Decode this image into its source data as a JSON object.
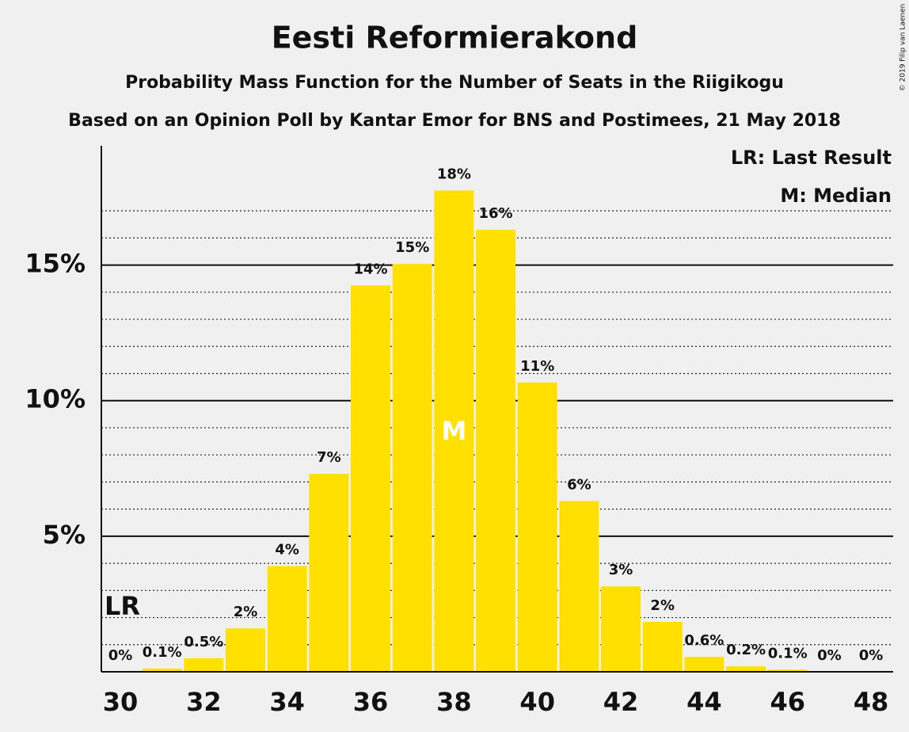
{
  "chart_data": {
    "type": "bar",
    "title": "Eesti Reformierakond",
    "subtitle": "Probability Mass Function for the Number of Seats in the Riigikogu",
    "subtitle2": "Based on an Opinion Poll by Kantar Emor for BNS and Postimees, 21 May 2018",
    "copyright": "© 2019 Filip van Laenen",
    "legend": [
      "LR: Last Result",
      "M: Median"
    ],
    "legend_position": "upper right",
    "last_result": 30,
    "last_result_label": "LR",
    "median": 38,
    "median_label": "M",
    "categories": [
      30,
      null,
      32,
      null,
      34,
      null,
      36,
      null,
      38,
      null,
      40,
      null,
      42,
      null,
      44,
      null,
      46,
      null,
      48
    ],
    "values": [
      0,
      0.12,
      0.5,
      1.6,
      3.9,
      7.3,
      14.25,
      15.04,
      17.75,
      16.3,
      10.67,
      6.3,
      3.15,
      1.84,
      0.55,
      0.2,
      0.08,
      0,
      0
    ],
    "value_labels": [
      "0%",
      "0.1%",
      "0.5%",
      "2%",
      "4%",
      "7%",
      "14%",
      "15%",
      "18%",
      "16%",
      "11%",
      "6%",
      "3%",
      "2%",
      "0.6%",
      "0.2%",
      "0.1%",
      "0%",
      "0%"
    ],
    "color": "#ffe000",
    "ylim": [
      0,
      19.4
    ],
    "yticks": [
      {
        "value": 5,
        "label": "5%"
      },
      {
        "value": 10,
        "label": "10%"
      },
      {
        "value": 15,
        "label": "15%"
      }
    ],
    "minor_yticks": [
      1,
      2,
      3,
      4,
      6,
      7,
      8,
      9,
      11,
      12,
      13,
      14,
      16,
      17
    ],
    "grid": true
  }
}
